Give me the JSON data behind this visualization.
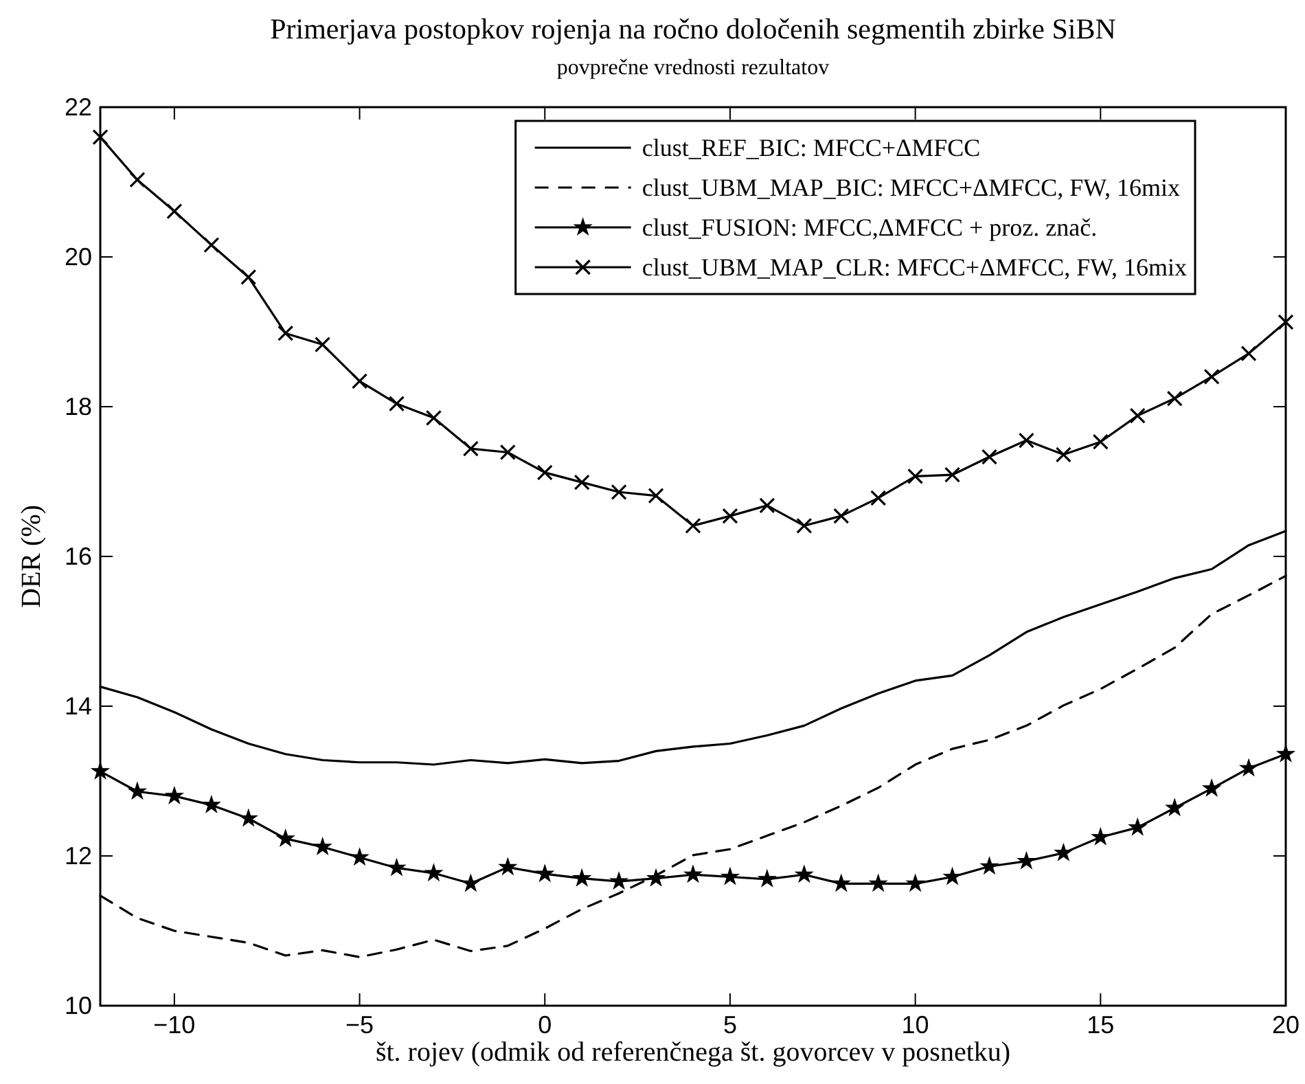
{
  "chart_data": {
    "type": "line",
    "title": "Primerjava postopkov rojenja na ročno določenih segmentih zbirke SiBN",
    "subtitle": "povprečne vrednosti rezultatov",
    "xlabel": "št. rojev (odmik od referenčnega št. govorcev v posnetku)",
    "ylabel": "DER (%)",
    "x": [
      -12,
      -11,
      -10,
      -9,
      -8,
      -7,
      -6,
      -5,
      -4,
      -3,
      -2,
      -1,
      0,
      1,
      2,
      3,
      4,
      5,
      6,
      7,
      8,
      9,
      10,
      11,
      12,
      13,
      14,
      15,
      16,
      17,
      18,
      19,
      20
    ],
    "series": [
      {
        "name": "clust_REF_BIC: MFCC+ΔMFCC",
        "color": "#000000",
        "line_style": "solid",
        "marker": "none",
        "values": [
          14.26,
          14.12,
          13.92,
          13.69,
          13.5,
          13.36,
          13.28,
          13.25,
          13.25,
          13.22,
          13.28,
          13.24,
          13.29,
          13.24,
          13.27,
          13.4,
          13.46,
          13.5,
          13.61,
          13.74,
          13.97,
          14.17,
          14.34,
          14.41,
          14.68,
          14.99,
          15.19,
          15.36,
          15.53,
          15.71,
          15.83,
          16.15,
          16.34
        ]
      },
      {
        "name": "clust_UBM_MAP_BIC: MFCC+ΔMFCC, FW, 16mix",
        "color": "#000000",
        "line_style": "dashed",
        "marker": "none",
        "values": [
          11.47,
          11.17,
          11.0,
          10.92,
          10.84,
          10.67,
          10.74,
          10.65,
          10.75,
          10.88,
          10.73,
          10.8,
          11.03,
          11.29,
          11.5,
          11.74,
          12.01,
          12.09,
          12.27,
          12.45,
          12.67,
          12.91,
          13.22,
          13.43,
          13.55,
          13.74,
          14.01,
          14.23,
          14.5,
          14.78,
          15.23,
          15.48,
          15.74
        ]
      },
      {
        "name": "clust_FUSION: MFCC,ΔMFCC + proz. znač.",
        "color": "#000000",
        "line_style": "solid",
        "marker": "star",
        "values": [
          13.13,
          12.86,
          12.8,
          12.68,
          12.5,
          12.23,
          12.12,
          11.98,
          11.84,
          11.77,
          11.63,
          11.85,
          11.76,
          11.7,
          11.66,
          11.7,
          11.75,
          11.72,
          11.69,
          11.75,
          11.63,
          11.63,
          11.63,
          11.72,
          11.86,
          11.93,
          12.04,
          12.25,
          12.38,
          12.64,
          12.9,
          13.17,
          13.36
        ]
      },
      {
        "name": "clust_UBM_MAP_CLR: MFCC+ΔMFCC, FW, 16mix",
        "color": "#000000",
        "line_style": "solid",
        "marker": "cross",
        "values": [
          21.6,
          21.03,
          20.61,
          20.16,
          19.73,
          18.98,
          18.83,
          18.34,
          18.04,
          17.85,
          17.44,
          17.39,
          17.12,
          16.99,
          16.86,
          16.81,
          16.41,
          16.54,
          16.68,
          16.41,
          16.54,
          16.78,
          17.07,
          17.09,
          17.33,
          17.55,
          17.36,
          17.53,
          17.88,
          18.11,
          18.4,
          18.71,
          19.13
        ]
      }
    ],
    "xlim": [
      -12,
      20
    ],
    "xticks": [
      {
        "value": -10,
        "label": "−10"
      },
      {
        "value": -5,
        "label": "−5"
      },
      0,
      5,
      10,
      15,
      20
    ],
    "ylim": [
      10,
      22
    ],
    "yticks": [
      10,
      12,
      14,
      16,
      18,
      20,
      22
    ],
    "grid": false,
    "legend": "top right"
  }
}
